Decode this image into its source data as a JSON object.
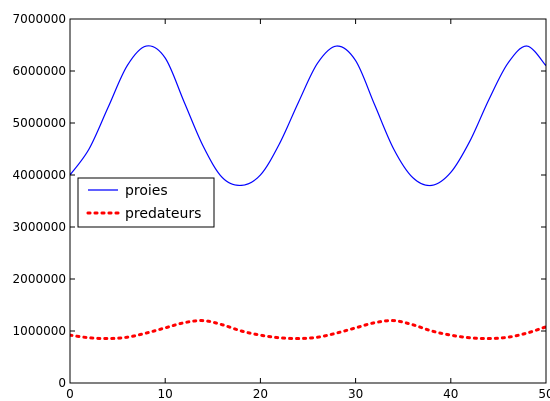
{
  "chart_data": {
    "type": "line",
    "title": "",
    "xlabel": "",
    "ylabel": "",
    "xlim": [
      0,
      50
    ],
    "ylim": [
      0,
      7000000
    ],
    "x_ticks": [
      0,
      10,
      20,
      30,
      40,
      50
    ],
    "x_tick_labels": [
      "0",
      "10",
      "20",
      "30",
      "40",
      "50"
    ],
    "y_ticks": [
      0,
      1000000,
      2000000,
      3000000,
      4000000,
      5000000,
      6000000,
      7000000
    ],
    "y_tick_labels": [
      "0",
      "1000000",
      "2000000",
      "3000000",
      "4000000",
      "5000000",
      "6000000",
      "7000000"
    ],
    "grid": false,
    "legend_position": "center-left",
    "x": [
      0,
      2,
      4,
      6,
      8,
      10,
      12,
      14,
      16,
      18,
      20,
      22,
      24,
      26,
      28,
      30,
      32,
      34,
      36,
      38,
      40,
      42,
      44,
      46,
      48,
      50
    ],
    "series": [
      {
        "name": "proies",
        "color": "#0000ff",
        "style": "solid",
        "values": [
          4000000,
          4500000,
          5300000,
          6100000,
          6480000,
          6250000,
          5400000,
          4550000,
          3950000,
          3800000,
          4000000,
          4600000,
          5400000,
          6150000,
          6480000,
          6200000,
          5350000,
          4500000,
          3950000,
          3800000,
          4050000,
          4650000,
          5450000,
          6150000,
          6480000,
          6100000
        ]
      },
      {
        "name": "predateurs",
        "color": "#ff0000",
        "style": "dotted",
        "values": [
          920000,
          870000,
          855000,
          880000,
          960000,
          1060000,
          1160000,
          1200000,
          1120000,
          1000000,
          920000,
          870000,
          855000,
          880000,
          960000,
          1060000,
          1160000,
          1200000,
          1120000,
          1000000,
          920000,
          870000,
          855000,
          880000,
          960000,
          1080000
        ]
      }
    ]
  }
}
